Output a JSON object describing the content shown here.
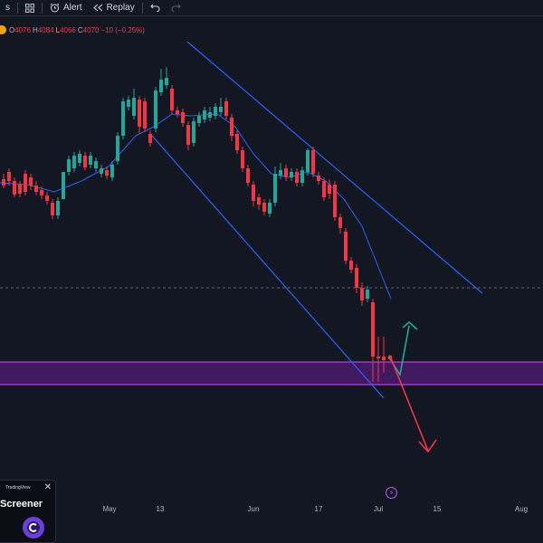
{
  "toolbar": {
    "left_fragment": "s",
    "grid_icon": "grid-icon",
    "alert_label": "Alert",
    "alert_icon": "alarm-clock-icon",
    "replay_label": "Replay",
    "replay_icon": "rewind-icon",
    "undo_icon": "undo-icon",
    "redo_icon": "redo-icon"
  },
  "ohlc": {
    "o_label": "O",
    "o_value": "4076",
    "h_label": "H",
    "h_value": "4084",
    "l_label": "L",
    "l_value": "4066",
    "c_label": "C",
    "c_value": "4070",
    "change": "−10 (−0.25%)"
  },
  "xaxis": {
    "ticks": [
      "May",
      "13",
      "Jun",
      "17",
      "Jul",
      "15",
      "Aug"
    ]
  },
  "screener_popup": {
    "brand": "TradingView",
    "title": "Screener",
    "close_icon": "close-icon"
  },
  "colors": {
    "background": "#131722",
    "bull": "#26a69a",
    "bear": "#f23645",
    "channel": "#2962ff",
    "zone": "#4a1a6b",
    "zone_border": "#d04bff",
    "up_arrow": "#22ab94",
    "down_arrow": "#f23645"
  }
}
